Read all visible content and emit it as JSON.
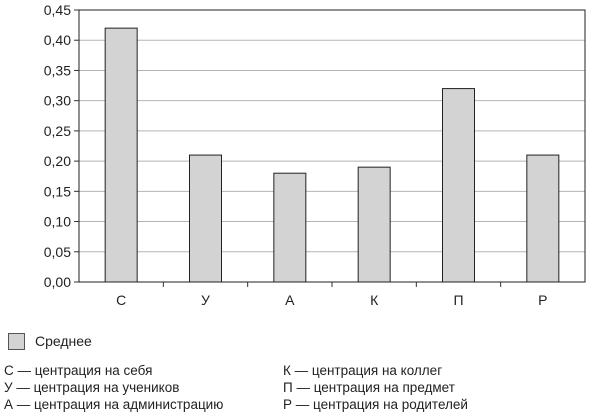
{
  "chart_data": {
    "type": "bar",
    "categories": [
      "С",
      "У",
      "А",
      "К",
      "П",
      "Р"
    ],
    "series": [
      {
        "name": "Среднее",
        "values": [
          0.42,
          0.21,
          0.18,
          0.19,
          0.32,
          0.21
        ]
      }
    ],
    "y_ticks": [
      "0,00",
      "0,05",
      "0,10",
      "0,15",
      "0,20",
      "0,25",
      "0,30",
      "0,35",
      "0,40",
      "0,45"
    ],
    "ylim": [
      0,
      0.45
    ],
    "grid": "horizontal",
    "legend_position": "bottom-left",
    "bar_color": "#d3d3d3",
    "grid_color": "#b5b5b5",
    "title": "",
    "xlabel": "",
    "ylabel": ""
  },
  "notes_left": [
    "С — центрация на себя",
    "У — центрация на учеников",
    "А — центрация на администрацию"
  ],
  "notes_right": [
    "К — центрация на коллег",
    "П — центрация на предмет",
    "Р — центрация на родителей"
  ]
}
